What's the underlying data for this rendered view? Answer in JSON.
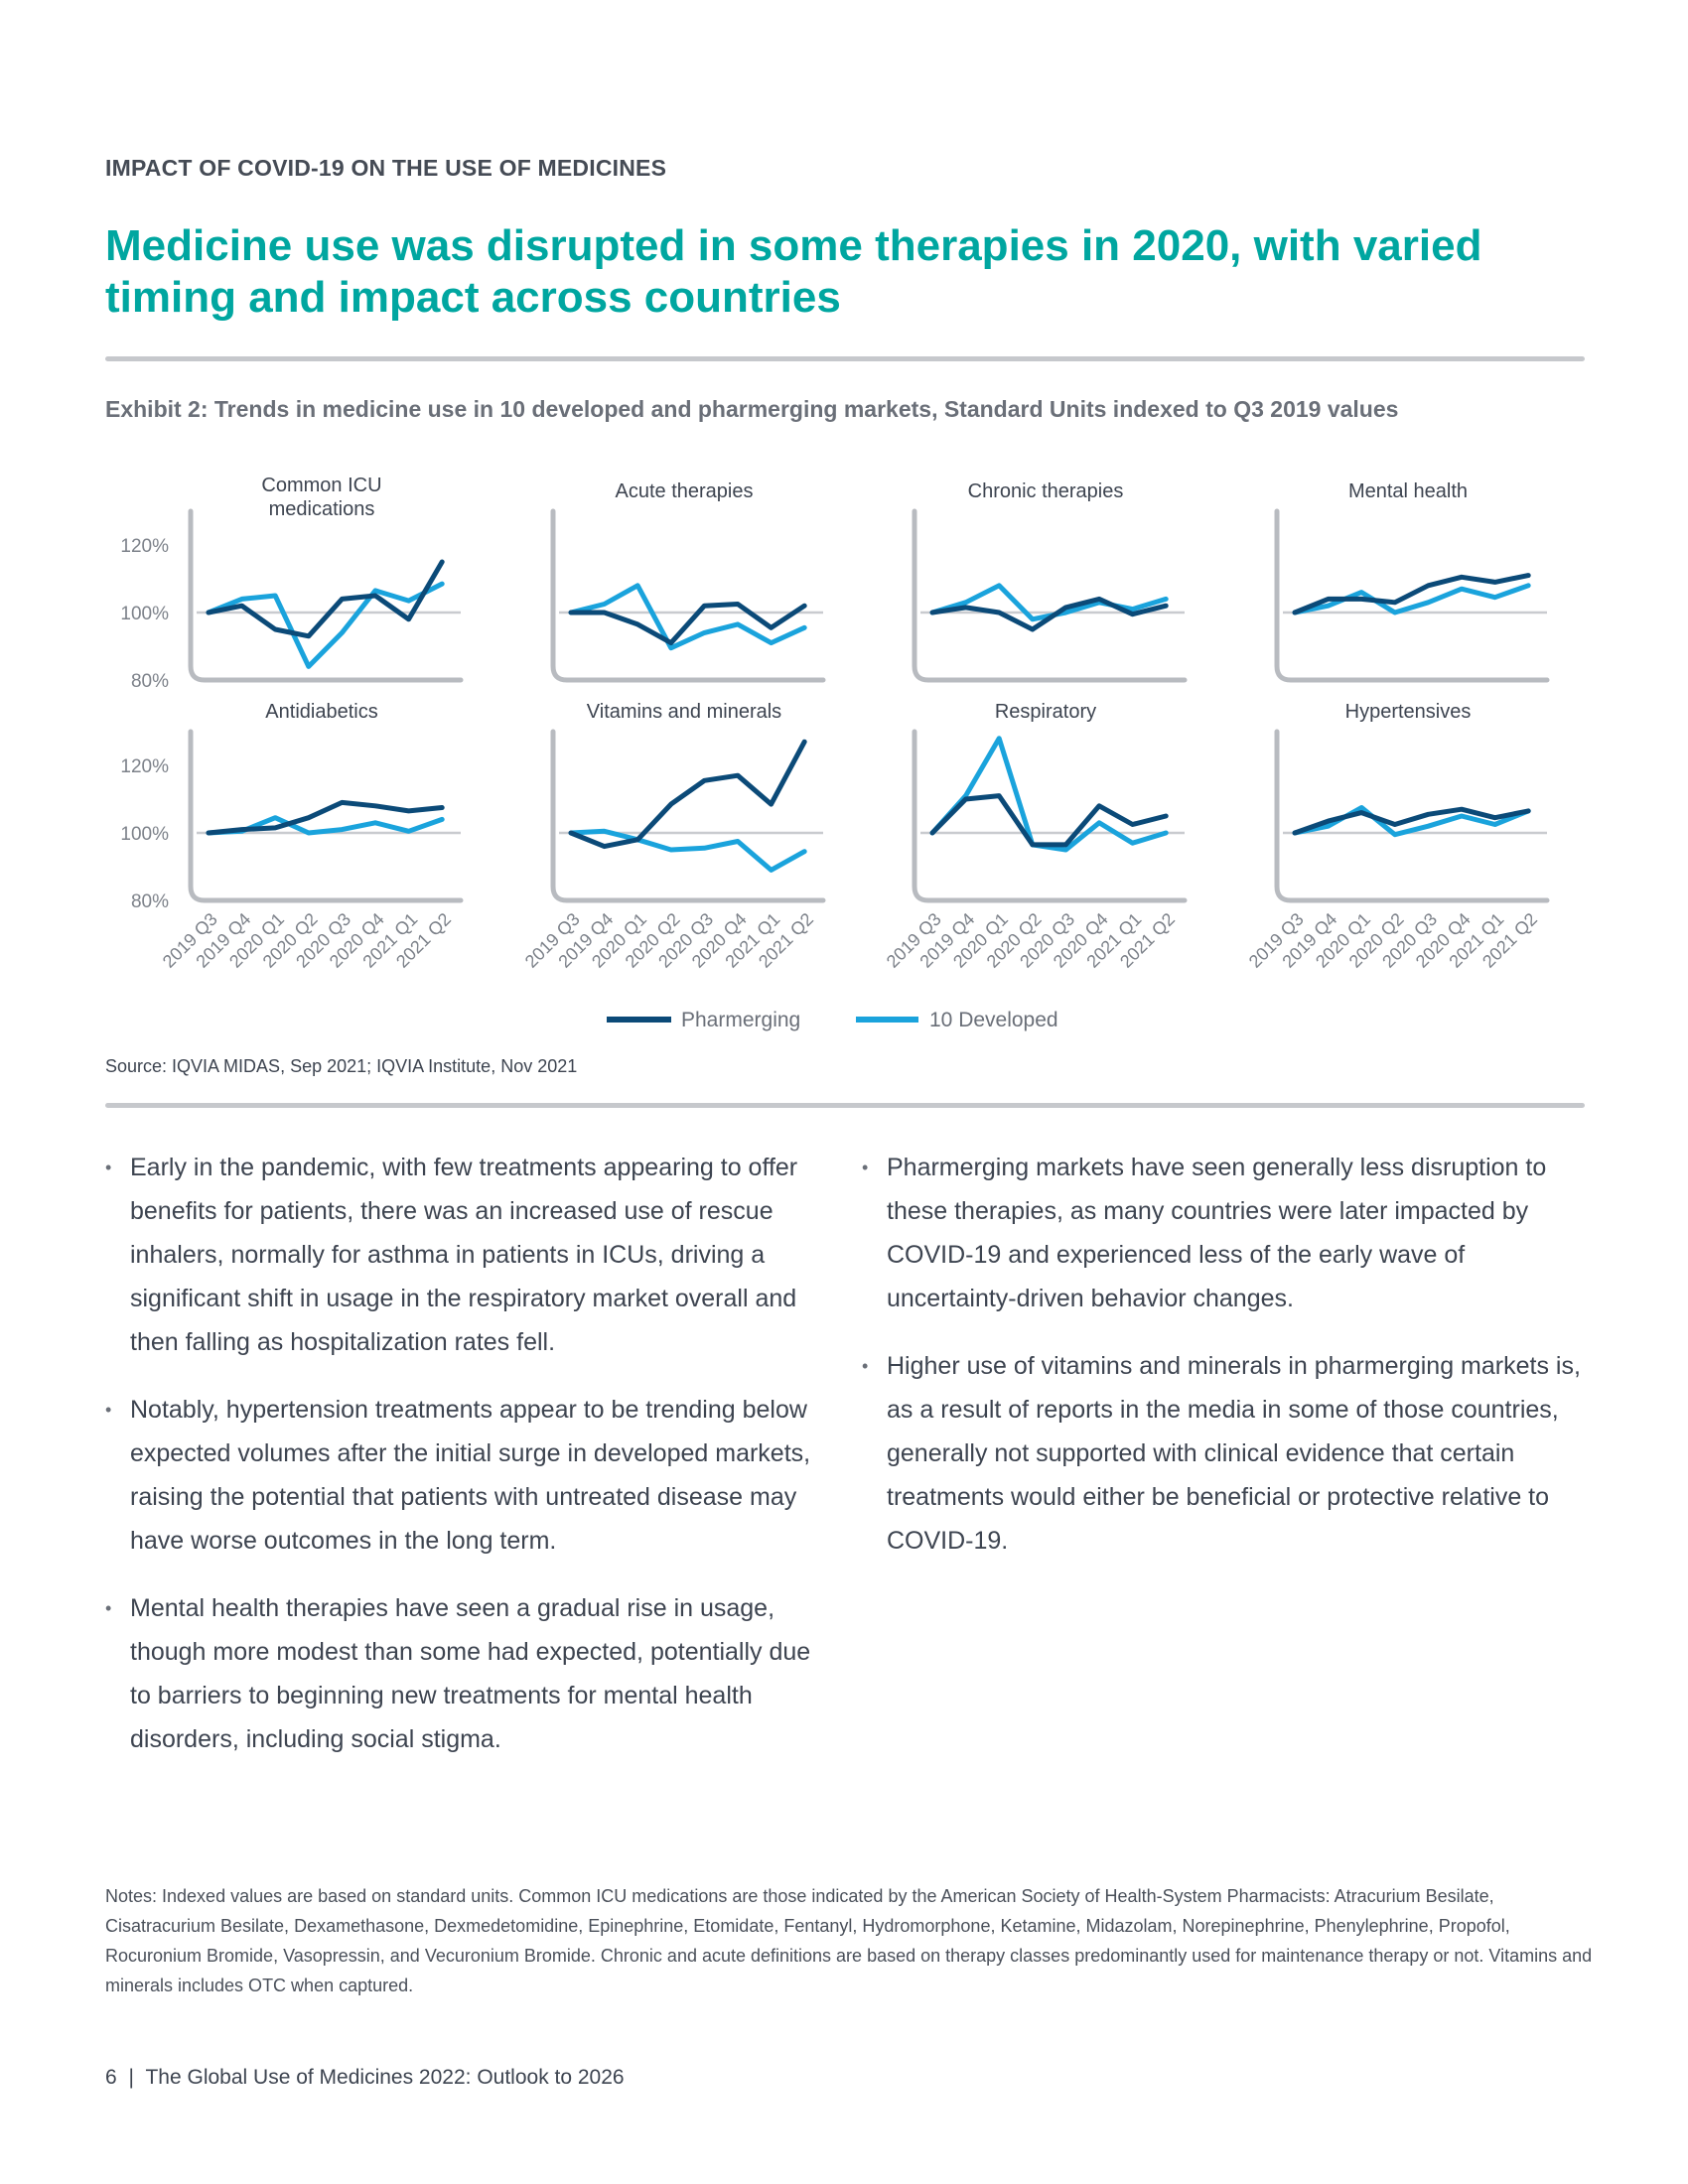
{
  "header": {
    "section": "IMPACT OF COVID-19 ON THE USE OF MEDICINES",
    "title": "Medicine use was disrupted in some therapies in 2020, with varied timing and impact across countries"
  },
  "exhibit": {
    "caption": "Exhibit 2: Trends in medicine use in 10 developed and pharmerging markets, Standard Units indexed to Q3 2019 values",
    "source": "Source: IQVIA MIDAS, Sep 2021; IQVIA Institute, Nov 2021"
  },
  "chart_data": {
    "type": "line",
    "layout": "small-multiples 2x4",
    "x": [
      "2019 Q3",
      "2019 Q4",
      "2020 Q1",
      "2020 Q2",
      "2020 Q3",
      "2020 Q4",
      "2021 Q1",
      "2021 Q2"
    ],
    "y_ticks": [
      "120%",
      "100%",
      "80%"
    ],
    "ylim": [
      80,
      130
    ],
    "reference_line": 100,
    "legend": {
      "position": "bottom-center",
      "entries": [
        "Pharmerging",
        "10 Developed"
      ]
    },
    "colors": {
      "Pharmerging": "#0b4a78",
      "10 Developed": "#1aa3dc",
      "axis": "#b8bbc0"
    },
    "panels": [
      {
        "title": "Common ICU medications",
        "series": [
          {
            "name": "Pharmerging",
            "values": [
              100,
              102,
              95,
              93,
              104,
              105,
              98,
              115
            ]
          },
          {
            "name": "10 Developed",
            "values": [
              100,
              104,
              105,
              84,
              94,
              106.5,
              103.5,
              108.5
            ]
          }
        ]
      },
      {
        "title": "Acute therapies",
        "series": [
          {
            "name": "Pharmerging",
            "values": [
              100,
              100,
              96.5,
              91,
              102,
              102.5,
              95.5,
              102
            ]
          },
          {
            "name": "10 Developed",
            "values": [
              100,
              102.5,
              108,
              89.5,
              94,
              96.5,
              91,
              95.5
            ]
          }
        ]
      },
      {
        "title": "Chronic therapies",
        "series": [
          {
            "name": "Pharmerging",
            "values": [
              100,
              101.5,
              100,
              95,
              101.5,
              104,
              99.5,
              102
            ]
          },
          {
            "name": "10 Developed",
            "values": [
              100,
              103,
              108,
              98,
              100,
              103,
              101,
              104
            ]
          }
        ]
      },
      {
        "title": "Mental health",
        "series": [
          {
            "name": "Pharmerging",
            "values": [
              100,
              104,
              104,
              103,
              108,
              110.5,
              109,
              111
            ]
          },
          {
            "name": "10 Developed",
            "values": [
              100,
              102,
              106,
              100,
              103,
              107,
              104.5,
              108
            ]
          }
        ]
      },
      {
        "title": "Antidiabetics",
        "series": [
          {
            "name": "Pharmerging",
            "values": [
              100,
              101,
              101.5,
              104.5,
              109,
              108,
              106.5,
              107.5
            ]
          },
          {
            "name": "10 Developed",
            "values": [
              100,
              100.5,
              104.5,
              100,
              101,
              103,
              100.5,
              104
            ]
          }
        ]
      },
      {
        "title": "Vitamins and minerals",
        "series": [
          {
            "name": "Pharmerging",
            "values": [
              100,
              96,
              98,
              108.5,
              115.5,
              117,
              108.5,
              127
            ]
          },
          {
            "name": "10 Developed",
            "values": [
              100,
              100.5,
              98,
              95,
              95.5,
              97.5,
              89,
              94.5
            ]
          }
        ]
      },
      {
        "title": "Respiratory",
        "series": [
          {
            "name": "Pharmerging",
            "values": [
              100,
              110,
              111,
              96.5,
              96.5,
              108,
              102.5,
              105
            ]
          },
          {
            "name": "10 Developed",
            "values": [
              100,
              111,
              128,
              96.5,
              95,
              103,
              97,
              100
            ]
          }
        ]
      },
      {
        "title": "Hypertensives",
        "series": [
          {
            "name": "Pharmerging",
            "values": [
              100,
              103.5,
              106,
              102.5,
              105.5,
              107,
              104.5,
              106.5
            ]
          },
          {
            "name": "10 Developed",
            "values": [
              100,
              102,
              107.5,
              99.5,
              102,
              105,
              102.5,
              106.5
            ]
          }
        ]
      }
    ]
  },
  "body": {
    "left": [
      "Early in the pandemic, with few treatments appearing to offer benefits for patients, there was an increased use of rescue inhalers, normally for asthma in patients in ICUs, driving a significant shift in usage in the respiratory market overall and then falling as hospitalization rates fell.",
      "Notably, hypertension treatments appear to be trending below expected volumes after the initial surge in developed markets, raising the potential that patients with untreated disease may have worse outcomes in the long term.",
      "Mental health therapies have seen a gradual rise in usage, though more modest than some had expected, potentially due to barriers to beginning new treatments for mental health disorders, including social stigma."
    ],
    "right": [
      "Pharmerging markets have seen generally less disruption to these therapies, as many countries were later impacted by COVID-19 and experienced less of the early wave of uncertainty-driven behavior changes.",
      "Higher use of vitamins and minerals in pharmerging markets is, as a result of reports in the media in some of those countries, generally not supported with clinical evidence that certain treatments would either be beneficial or protective relative to COVID-19."
    ],
    "bullet_glyph": "•"
  },
  "notes": "Notes: Indexed values are based on standard units. Common ICU medications are those indicated by the American Society of Health-System Pharmacists: Atracurium Besilate, Cisatracurium Besilate, Dexamethasone, Dexmedetomidine, Epinephrine, Etomidate, Fentanyl, Hydromorphone, Ketamine, Midazolam, Norepinephrine, Phenylephrine, Propofol, Rocuronium Bromide, Vasopressin, and Vecuronium Bromide. Chronic and acute definitions are based on therapy classes predominantly used for maintenance therapy or not. Vitamins and minerals includes OTC when captured.",
  "footer": {
    "page_number": "6",
    "separator": "|",
    "publication": "The Global Use of Medicines 2022: Outlook to 2026"
  }
}
